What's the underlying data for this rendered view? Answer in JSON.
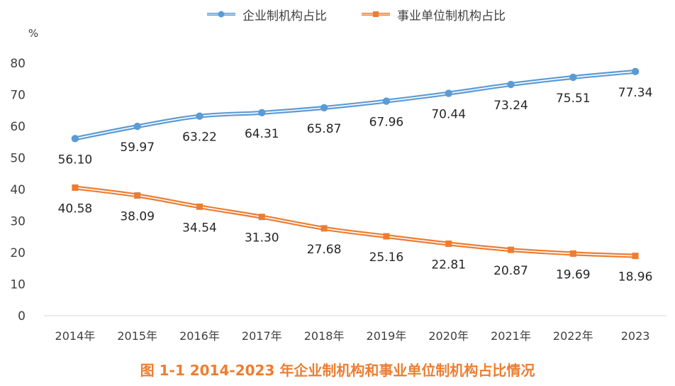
{
  "chart_data": {
    "type": "line",
    "categories": [
      "2014年",
      "2015年",
      "2016年",
      "2017年",
      "2018年",
      "2019年",
      "2020年",
      "2021年",
      "2022年",
      "2023"
    ],
    "series": [
      {
        "name": "企业制机构占比",
        "color": "#5B9BD5",
        "values": [
          56.1,
          59.97,
          63.22,
          64.31,
          65.87,
          67.96,
          70.44,
          73.24,
          75.51,
          77.34
        ],
        "labels": [
          "56.10",
          "59.97",
          "63.22",
          "64.31",
          "65.87",
          "67.96",
          "70.44",
          "73.24",
          "75.51",
          "77.34"
        ]
      },
      {
        "name": "事业单位制机构占比",
        "color": "#ED7D31",
        "values": [
          40.58,
          38.09,
          34.54,
          31.3,
          27.68,
          25.16,
          22.81,
          20.87,
          19.69,
          18.96
        ],
        "labels": [
          "40.58",
          "38.09",
          "34.54",
          "31.30",
          "27.68",
          "25.16",
          "22.81",
          "20.87",
          "19.69",
          "18.96"
        ]
      }
    ],
    "ylabel": "%",
    "ylim": [
      0,
      80
    ],
    "yticks": [
      "0",
      "10",
      "20",
      "30",
      "40",
      "50",
      "60",
      "70",
      "80"
    ],
    "grid": false,
    "legend": "top-center",
    "caption": "图 1-1    2014-2023 年企业制机构和事业单位制机构占比情况"
  }
}
